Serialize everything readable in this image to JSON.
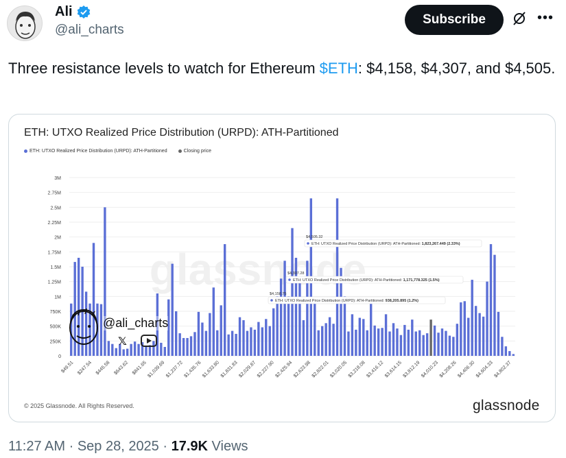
{
  "author": {
    "name": "Ali",
    "handle": "@ali_charts"
  },
  "header": {
    "subscribe_label": "Subscribe",
    "grok_icon": "grok-slash-icon",
    "more_icon": "more-dots-icon"
  },
  "tweet": {
    "text_before": "Three resistance levels to watch for Ethereum ",
    "cashtag": "$ETH",
    "text_after": ": $4,158, $4,307, and $4,505."
  },
  "chart_card": {
    "watermark": "glassnode",
    "copyright": "© 2025 Glassnode. All Rights Reserved.",
    "brand": "glassnode",
    "sticker_handle": "@ali_charts"
  },
  "chart_data": {
    "type": "bar",
    "title": "ETH: UTXO Realized Price Distribution (URPD): ATH-Partitioned",
    "legend": [
      "ETH: UTXO Realized Price Distribution (URPD): ATH-Partitioned",
      "Closing price"
    ],
    "colors": {
      "bars": "#5b6fd6",
      "closing": "#666666"
    },
    "ylim": [
      0,
      3000000
    ],
    "yticks": [
      "0",
      "250K",
      "500K",
      "750K",
      "1M",
      "1.25M",
      "1.5M",
      "1.75M",
      "2M",
      "2.25M",
      "2.5M",
      "2.75M",
      "3M"
    ],
    "xtick_labels": [
      "$49.51",
      "$247.54",
      "$445.58",
      "$643.62",
      "$841.65",
      "$1,039.69",
      "$1,237.72",
      "$1,435.76",
      "$1,633.80",
      "$1,831.83",
      "$2,029.87",
      "$2,227.90",
      "$2,425.94",
      "$2,623.98",
      "$2,822.01",
      "$3,020.05",
      "$3,218.08",
      "$3,416.12",
      "$3,614.15",
      "$3,812.19",
      "$4,010.23",
      "$4,208.26",
      "$4,406.30",
      "$4,604.33",
      "$4,802.37"
    ],
    "values": [
      880000,
      1580000,
      1650000,
      1500000,
      1080000,
      880000,
      1900000,
      880000,
      870000,
      2500000,
      250000,
      200000,
      130000,
      200000,
      110000,
      120000,
      200000,
      240000,
      200000,
      230000,
      150000,
      180000,
      250000,
      1050000,
      220000,
      150000,
      950000,
      1550000,
      750000,
      380000,
      300000,
      300000,
      330000,
      400000,
      740000,
      560000,
      420000,
      720000,
      1150000,
      430000,
      850000,
      1880000,
      360000,
      420000,
      370000,
      650000,
      600000,
      420000,
      480000,
      440000,
      570000,
      480000,
      620000,
      500000,
      800000,
      1000000,
      1300000,
      1600000,
      1000000,
      2150000,
      1650000,
      1300000,
      600000,
      1600000,
      2650000,
      950000,
      430000,
      500000,
      550000,
      650000,
      540000,
      2650000,
      1480000,
      1000000,
      410000,
      700000,
      440000,
      640000,
      620000,
      430000,
      880000,
      510000,
      460000,
      470000,
      700000,
      410000,
      550000,
      460000,
      350000,
      520000,
      440000,
      610000,
      410000,
      430000,
      350000,
      380000,
      610000,
      510000,
      390000,
      460000,
      420000,
      340000,
      320000,
      540000,
      900000,
      920000,
      640000,
      1280000,
      840000,
      720000,
      660000,
      1250000,
      1880000,
      1700000,
      740000,
      320000,
      160000,
      80000,
      30000
    ],
    "closing_price_index": 96,
    "annotations": [
      {
        "price": "$4,505.32",
        "text": "ETH: UTXO Realized Price Distribution (URPD): ATH-Partitioned: ",
        "value": "1,823,267.449 (2.33%)"
      },
      {
        "price": "$4,307.28",
        "text": "ETH: UTXO Realized Price Distribution (URPD): ATH-Partitioned: ",
        "value": "1,171,778.325 (1.5%)"
      },
      {
        "price": "$4,158.75",
        "text": "ETH: UTXO Realized Price Distribution (URPD): ATH-Partitioned: ",
        "value": "938,205.895 (1.2%)"
      }
    ]
  },
  "footer": {
    "time": "11:27 AM",
    "date": "Sep 28, 2025",
    "views_count": "17.9K",
    "views_label": "Views"
  }
}
